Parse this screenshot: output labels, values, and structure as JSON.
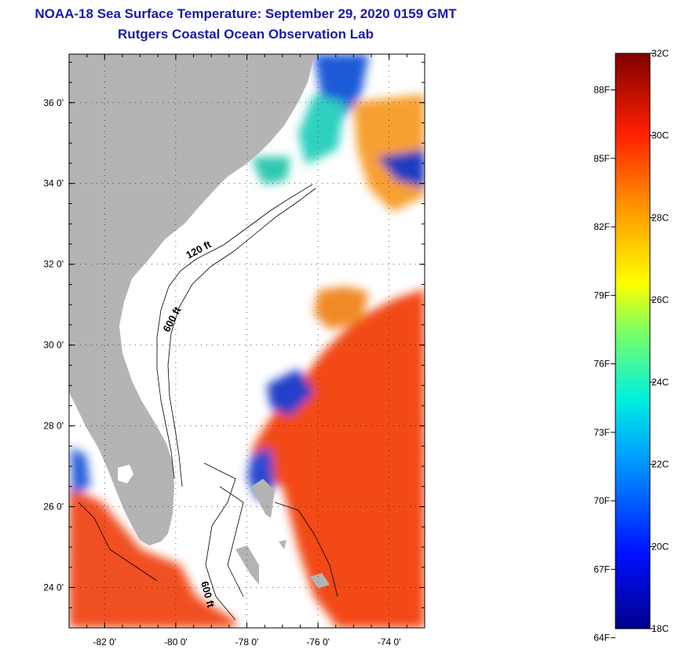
{
  "header": {
    "title": "NOAA-18 Sea Surface Temperature:  September 29, 2020 0159 GMT",
    "subtitle": "Rutgers Coastal Ocean Observation Lab"
  },
  "map": {
    "lat_ticks": [
      "36 0'",
      "34 0'",
      "32 0'",
      "30 0'",
      "28 0'",
      "26 0'",
      "24 0'"
    ],
    "lon_ticks": [
      "-82 0'",
      "-80 0'",
      "-78 0'",
      "-76 0'",
      "-74 0'"
    ],
    "lat_values": [
      36,
      34,
      32,
      30,
      28,
      26,
      24
    ],
    "lon_values": [
      -82,
      -80,
      -78,
      -76,
      -74
    ],
    "lat_range": [
      23,
      37.2
    ],
    "lon_range": [
      -83,
      -73
    ],
    "isobaths": [
      "120 ft",
      "600 ft",
      "600 ft"
    ],
    "colors": {
      "land": "#b4b4b4",
      "no_data": "#ffffff",
      "warm_water": "#f03c14",
      "cold_water": "#1432b4"
    }
  },
  "colorbar": {
    "fahrenheit_labels": [
      "88F",
      "85F",
      "82F",
      "79F",
      "76F",
      "73F",
      "70F",
      "67F",
      "64F"
    ],
    "fahrenheit_values": [
      88,
      85,
      82,
      79,
      76,
      73,
      70,
      67,
      64
    ],
    "celsius_labels": [
      "32C",
      "30C",
      "28C",
      "26C",
      "24C",
      "22C",
      "20C",
      "18C"
    ],
    "celsius_values": [
      32,
      30,
      28,
      26,
      24,
      22,
      20,
      18
    ],
    "range_c": [
      18,
      32
    ]
  }
}
